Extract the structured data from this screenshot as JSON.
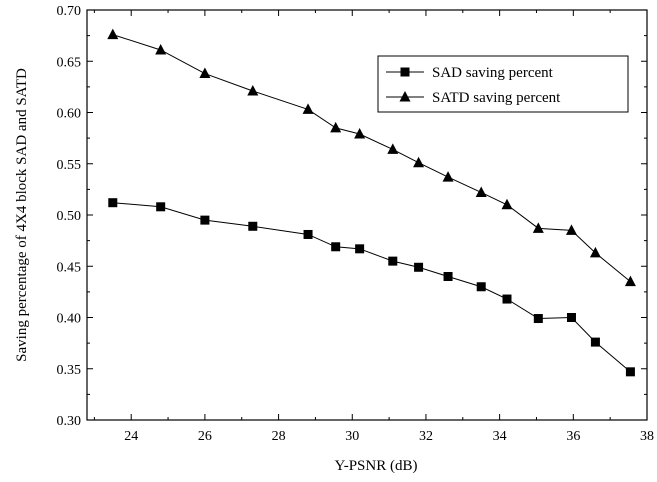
{
  "chart_data": {
    "type": "line",
    "xlabel": "Y-PSNR (dB)",
    "ylabel": "Saving percentage of 4X4 block SAD and SATD",
    "xlim": [
      22.8,
      38
    ],
    "ylim": [
      0.3,
      0.7
    ],
    "xticks": [
      "24",
      "26",
      "28",
      "30",
      "32",
      "34",
      "36",
      "38"
    ],
    "yticks": [
      "0.30",
      "0.35",
      "0.40",
      "0.45",
      "0.50",
      "0.55",
      "0.60",
      "0.65",
      "0.70"
    ],
    "legend_position": "top-right",
    "grid": false,
    "series": [
      {
        "name": "SAD saving percent",
        "marker": "square",
        "x": [
          23.5,
          24.8,
          26.0,
          27.3,
          28.8,
          29.55,
          30.2,
          31.1,
          31.8,
          32.6,
          33.5,
          34.2,
          35.05,
          35.95,
          36.6,
          37.55
        ],
        "y": [
          0.512,
          0.508,
          0.495,
          0.489,
          0.481,
          0.469,
          0.467,
          0.455,
          0.449,
          0.44,
          0.43,
          0.418,
          0.399,
          0.4,
          0.376,
          0.347
        ]
      },
      {
        "name": "SATD saving percent",
        "marker": "triangle",
        "x": [
          23.5,
          24.8,
          26.0,
          27.3,
          28.8,
          29.55,
          30.2,
          31.1,
          31.8,
          32.6,
          33.5,
          34.2,
          35.05,
          35.95,
          36.6,
          37.55
        ],
        "y": [
          0.676,
          0.661,
          0.638,
          0.621,
          0.603,
          0.585,
          0.579,
          0.564,
          0.551,
          0.537,
          0.522,
          0.51,
          0.487,
          0.485,
          0.463,
          0.435
        ]
      }
    ]
  },
  "colors": {
    "line": "#000000",
    "background": "#ffffff"
  }
}
